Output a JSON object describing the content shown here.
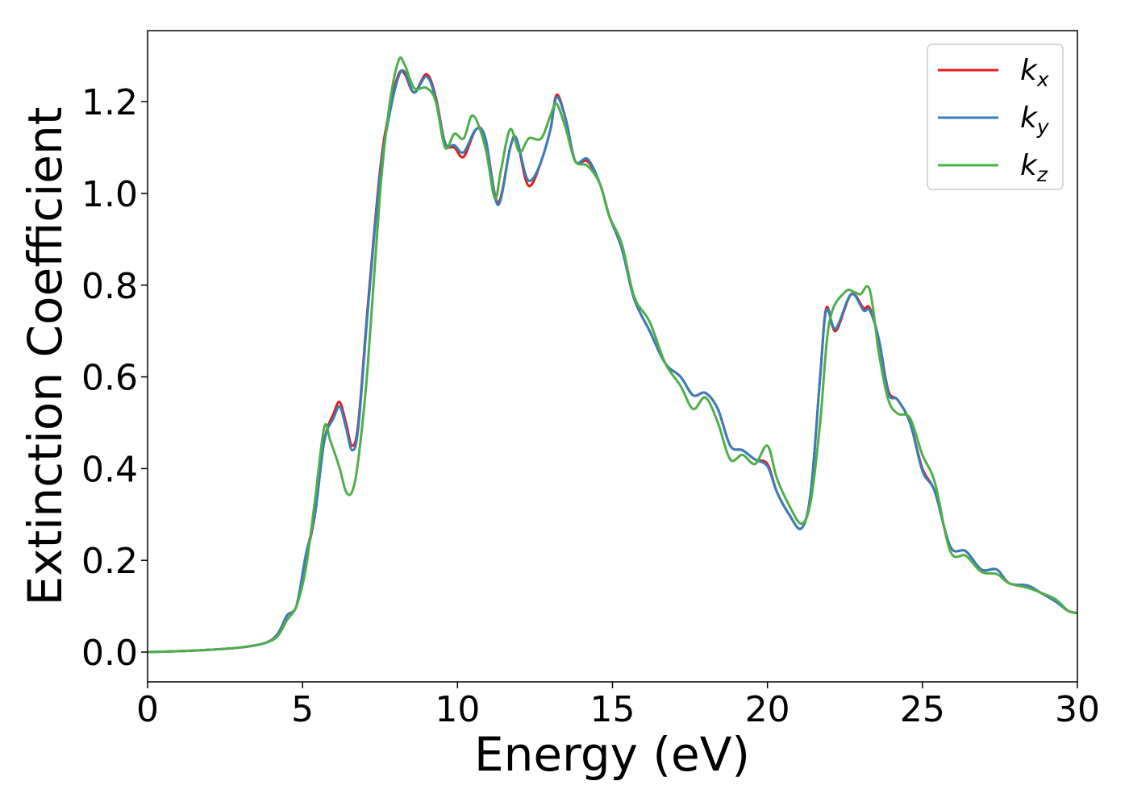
{
  "chart_data": {
    "type": "line",
    "xlabel": "Energy (eV)",
    "ylabel": "Extinction Coefficient",
    "xlim": [
      0,
      30
    ],
    "ylim": [
      -0.065,
      1.355
    ],
    "xticks": [
      0,
      5,
      10,
      15,
      20,
      25,
      30
    ],
    "xtick_labels": [
      "0",
      "5",
      "10",
      "15",
      "20",
      "25",
      "30"
    ],
    "yticks": [
      0.0,
      0.2,
      0.4,
      0.6,
      0.8,
      1.0,
      1.2
    ],
    "ytick_labels": [
      "0.0",
      "0.2",
      "0.4",
      "0.6",
      "0.8",
      "1.0",
      "1.2"
    ],
    "grid": false,
    "legend_position": "top-right",
    "series": [
      {
        "name": "k_x",
        "label_main": "k",
        "label_sub": "x",
        "color": "#e41a1c",
        "points": [
          [
            0,
            0.0
          ],
          [
            1,
            0.002
          ],
          [
            2,
            0.005
          ],
          [
            3,
            0.01
          ],
          [
            3.8,
            0.02
          ],
          [
            4.2,
            0.04
          ],
          [
            4.5,
            0.08
          ],
          [
            4.8,
            0.1
          ],
          [
            5.1,
            0.2
          ],
          [
            5.4,
            0.3
          ],
          [
            5.7,
            0.46
          ],
          [
            6,
            0.52
          ],
          [
            6.2,
            0.545
          ],
          [
            6.4,
            0.5
          ],
          [
            6.6,
            0.45
          ],
          [
            6.8,
            0.5
          ],
          [
            7.1,
            0.75
          ],
          [
            7.5,
            1.05
          ],
          [
            7.8,
            1.18
          ],
          [
            8.1,
            1.26
          ],
          [
            8.3,
            1.26
          ],
          [
            8.6,
            1.22
          ],
          [
            9,
            1.26
          ],
          [
            9.3,
            1.21
          ],
          [
            9.6,
            1.11
          ],
          [
            9.9,
            1.1
          ],
          [
            10.2,
            1.08
          ],
          [
            10.6,
            1.14
          ],
          [
            10.9,
            1.12
          ],
          [
            11.3,
            0.98
          ],
          [
            11.7,
            1.1
          ],
          [
            11.9,
            1.12
          ],
          [
            12.2,
            1.03
          ],
          [
            12.4,
            1.02
          ],
          [
            12.7,
            1.07
          ],
          [
            13,
            1.14
          ],
          [
            13.2,
            1.215
          ],
          [
            13.5,
            1.16
          ],
          [
            13.8,
            1.07
          ],
          [
            14.2,
            1.07
          ],
          [
            14.6,
            1.02
          ],
          [
            14.9,
            0.95
          ],
          [
            15.3,
            0.88
          ],
          [
            15.7,
            0.77
          ],
          [
            16.2,
            0.7
          ],
          [
            16.7,
            0.63
          ],
          [
            17.2,
            0.6
          ],
          [
            17.6,
            0.56
          ],
          [
            18,
            0.565
          ],
          [
            18.4,
            0.53
          ],
          [
            18.8,
            0.45
          ],
          [
            19.2,
            0.44
          ],
          [
            19.6,
            0.42
          ],
          [
            20,
            0.41
          ],
          [
            20.3,
            0.35
          ],
          [
            20.7,
            0.3
          ],
          [
            21.1,
            0.27
          ],
          [
            21.4,
            0.35
          ],
          [
            21.7,
            0.6
          ],
          [
            21.9,
            0.75
          ],
          [
            22.2,
            0.7
          ],
          [
            22.7,
            0.78
          ],
          [
            23.1,
            0.75
          ],
          [
            23.3,
            0.75
          ],
          [
            23.6,
            0.68
          ],
          [
            23.9,
            0.57
          ],
          [
            24.2,
            0.55
          ],
          [
            24.6,
            0.5
          ],
          [
            25,
            0.4
          ],
          [
            25.4,
            0.35
          ],
          [
            25.9,
            0.23
          ],
          [
            26.4,
            0.22
          ],
          [
            26.9,
            0.18
          ],
          [
            27.4,
            0.18
          ],
          [
            27.8,
            0.15
          ],
          [
            28.4,
            0.145
          ],
          [
            28.8,
            0.13
          ],
          [
            29.3,
            0.11
          ],
          [
            29.7,
            0.09
          ],
          [
            30,
            0.085
          ]
        ]
      },
      {
        "name": "k_y",
        "label_main": "k",
        "label_sub": "y",
        "color": "#377eb8",
        "points": [
          [
            0,
            0.0
          ],
          [
            1,
            0.002
          ],
          [
            2,
            0.005
          ],
          [
            3,
            0.01
          ],
          [
            3.8,
            0.02
          ],
          [
            4.2,
            0.04
          ],
          [
            4.5,
            0.08
          ],
          [
            4.8,
            0.1
          ],
          [
            5.1,
            0.21
          ],
          [
            5.4,
            0.3
          ],
          [
            5.7,
            0.46
          ],
          [
            6,
            0.51
          ],
          [
            6.2,
            0.535
          ],
          [
            6.4,
            0.49
          ],
          [
            6.6,
            0.44
          ],
          [
            6.8,
            0.49
          ],
          [
            7.1,
            0.74
          ],
          [
            7.5,
            1.04
          ],
          [
            7.8,
            1.17
          ],
          [
            8.1,
            1.255
          ],
          [
            8.3,
            1.265
          ],
          [
            8.6,
            1.22
          ],
          [
            9,
            1.255
          ],
          [
            9.3,
            1.205
          ],
          [
            9.6,
            1.11
          ],
          [
            9.9,
            1.105
          ],
          [
            10.2,
            1.09
          ],
          [
            10.6,
            1.14
          ],
          [
            10.9,
            1.12
          ],
          [
            11.3,
            0.975
          ],
          [
            11.7,
            1.1
          ],
          [
            11.9,
            1.12
          ],
          [
            12.2,
            1.04
          ],
          [
            12.4,
            1.03
          ],
          [
            12.7,
            1.07
          ],
          [
            13,
            1.14
          ],
          [
            13.2,
            1.21
          ],
          [
            13.5,
            1.16
          ],
          [
            13.8,
            1.07
          ],
          [
            14.2,
            1.075
          ],
          [
            14.6,
            1.02
          ],
          [
            14.9,
            0.95
          ],
          [
            15.3,
            0.88
          ],
          [
            15.7,
            0.77
          ],
          [
            16.2,
            0.7
          ],
          [
            16.7,
            0.63
          ],
          [
            17.2,
            0.6
          ],
          [
            17.6,
            0.56
          ],
          [
            18,
            0.565
          ],
          [
            18.4,
            0.53
          ],
          [
            18.8,
            0.45
          ],
          [
            19.2,
            0.44
          ],
          [
            19.6,
            0.42
          ],
          [
            20,
            0.405
          ],
          [
            20.3,
            0.35
          ],
          [
            20.7,
            0.3
          ],
          [
            21.1,
            0.27
          ],
          [
            21.4,
            0.35
          ],
          [
            21.7,
            0.6
          ],
          [
            21.9,
            0.745
          ],
          [
            22.2,
            0.705
          ],
          [
            22.7,
            0.78
          ],
          [
            23.1,
            0.745
          ],
          [
            23.3,
            0.745
          ],
          [
            23.6,
            0.68
          ],
          [
            23.9,
            0.565
          ],
          [
            24.2,
            0.55
          ],
          [
            24.6,
            0.5
          ],
          [
            25,
            0.395
          ],
          [
            25.4,
            0.35
          ],
          [
            25.9,
            0.23
          ],
          [
            26.4,
            0.22
          ],
          [
            26.9,
            0.18
          ],
          [
            27.4,
            0.18
          ],
          [
            27.8,
            0.15
          ],
          [
            28.4,
            0.145
          ],
          [
            28.8,
            0.13
          ],
          [
            29.3,
            0.11
          ],
          [
            29.7,
            0.09
          ],
          [
            30,
            0.085
          ]
        ]
      },
      {
        "name": "k_z",
        "label_main": "k",
        "label_sub": "z",
        "color": "#4daf4a",
        "points": [
          [
            0,
            0.0
          ],
          [
            1,
            0.002
          ],
          [
            2,
            0.005
          ],
          [
            3,
            0.01
          ],
          [
            3.8,
            0.02
          ],
          [
            4.2,
            0.035
          ],
          [
            4.5,
            0.07
          ],
          [
            4.8,
            0.1
          ],
          [
            5.1,
            0.18
          ],
          [
            5.4,
            0.33
          ],
          [
            5.7,
            0.49
          ],
          [
            5.9,
            0.46
          ],
          [
            6.2,
            0.4
          ],
          [
            6.4,
            0.35
          ],
          [
            6.6,
            0.35
          ],
          [
            6.8,
            0.42
          ],
          [
            7.1,
            0.62
          ],
          [
            7.5,
            1.0
          ],
          [
            7.8,
            1.19
          ],
          [
            8.1,
            1.29
          ],
          [
            8.3,
            1.28
          ],
          [
            8.6,
            1.23
          ],
          [
            9,
            1.23
          ],
          [
            9.3,
            1.2
          ],
          [
            9.6,
            1.1
          ],
          [
            9.9,
            1.13
          ],
          [
            10.2,
            1.12
          ],
          [
            10.5,
            1.17
          ],
          [
            10.9,
            1.1
          ],
          [
            11.2,
            0.99
          ],
          [
            11.4,
            1.05
          ],
          [
            11.7,
            1.14
          ],
          [
            12,
            1.09
          ],
          [
            12.3,
            1.12
          ],
          [
            12.7,
            1.12
          ],
          [
            13,
            1.17
          ],
          [
            13.2,
            1.195
          ],
          [
            13.5,
            1.14
          ],
          [
            13.8,
            1.07
          ],
          [
            14.2,
            1.06
          ],
          [
            14.6,
            1.02
          ],
          [
            14.9,
            0.95
          ],
          [
            15.3,
            0.89
          ],
          [
            15.7,
            0.775
          ],
          [
            16.2,
            0.72
          ],
          [
            16.7,
            0.63
          ],
          [
            17.2,
            0.58
          ],
          [
            17.6,
            0.53
          ],
          [
            18,
            0.555
          ],
          [
            18.4,
            0.5
          ],
          [
            18.8,
            0.42
          ],
          [
            19.2,
            0.43
          ],
          [
            19.6,
            0.41
          ],
          [
            20,
            0.45
          ],
          [
            20.3,
            0.38
          ],
          [
            20.7,
            0.32
          ],
          [
            21.1,
            0.28
          ],
          [
            21.4,
            0.33
          ],
          [
            21.7,
            0.5
          ],
          [
            22,
            0.72
          ],
          [
            22.5,
            0.785
          ],
          [
            22.8,
            0.785
          ],
          [
            23,
            0.78
          ],
          [
            23.3,
            0.79
          ],
          [
            23.6,
            0.65
          ],
          [
            23.9,
            0.55
          ],
          [
            24.2,
            0.52
          ],
          [
            24.6,
            0.51
          ],
          [
            25,
            0.43
          ],
          [
            25.4,
            0.37
          ],
          [
            25.9,
            0.22
          ],
          [
            26.4,
            0.21
          ],
          [
            26.9,
            0.175
          ],
          [
            27.4,
            0.17
          ],
          [
            27.8,
            0.15
          ],
          [
            28.4,
            0.14
          ],
          [
            28.8,
            0.13
          ],
          [
            29.3,
            0.115
          ],
          [
            29.7,
            0.09
          ],
          [
            30,
            0.085
          ]
        ]
      }
    ]
  }
}
